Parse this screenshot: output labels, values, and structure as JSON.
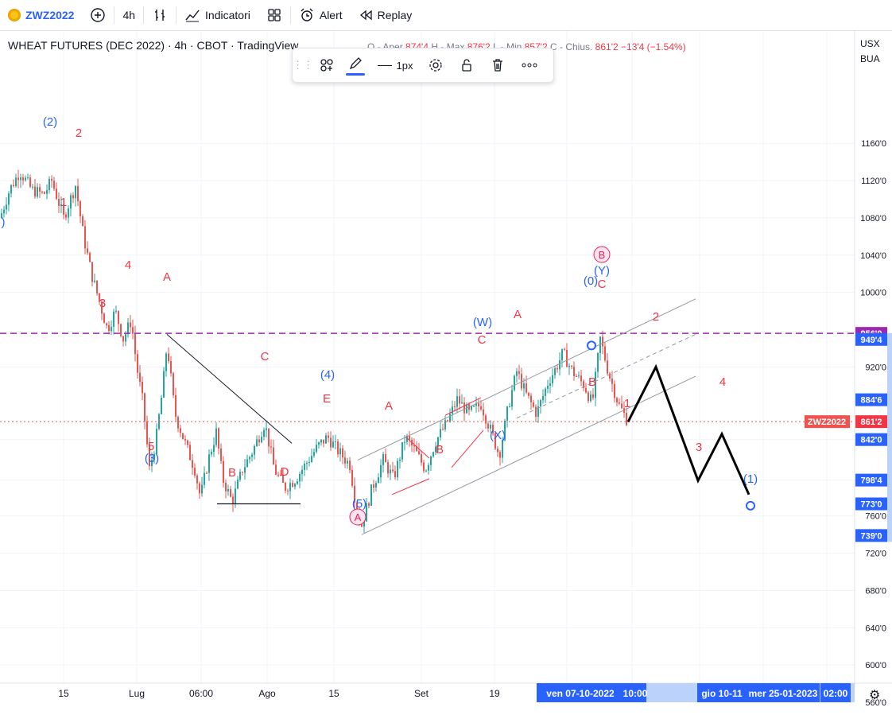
{
  "toolbar": {
    "symbol": "ZWZ2022",
    "timeframe": "4h",
    "indicators_label": "Indicatori",
    "alert_label": "Alert",
    "replay_label": "Replay"
  },
  "legend": {
    "title": "WHEAT FUTURES (DEC 2022) · 4h · CBOT · TradingView",
    "o_label": "O - Aper",
    "o_value": "874'4",
    "h_label": "H - Max",
    "h_value": "876'2",
    "l_label": "L - Min",
    "l_value": "857'2",
    "c_label": "C - Chius.",
    "c_value": "861'2",
    "change": "−13'4 (−1.54%)"
  },
  "drawing_toolbar": {
    "width_label": "1px"
  },
  "axis": {
    "currency": "USX",
    "unit": "BUA",
    "symbol_tag": "ZWZ2022"
  },
  "colors": {
    "up": "#26a69a",
    "down": "#ef5350",
    "wave_red": "#f23645",
    "wave_blue": "#2962ff",
    "resistance": "#9c27b0",
    "axis_highlight": "#2962ff",
    "projection": "#000000",
    "circled": "#e91e63"
  },
  "chart_data": {
    "type": "candlestick",
    "title": "WHEAT FUTURES (DEC 2022)",
    "y_ticks": [
      "1160'0",
      "1120'0",
      "1080'0",
      "1040'0",
      "1000'0",
      "920'0",
      "842'0",
      "798'4",
      "760'0",
      "720'0",
      "680'0",
      "640'0",
      "600'0",
      "560'0"
    ],
    "y_range": [
      540,
      1200
    ],
    "x_ticks": [
      "15",
      "Lug",
      "06:00",
      "Ago",
      "15",
      "Set",
      "19"
    ],
    "x_highlights": [
      "ven 07-10-2022",
      "10:00",
      "gio 10-11",
      "mer 25-01-2023",
      "02:00"
    ],
    "price_tags": [
      {
        "value": "956'0",
        "color": "#9c27b0"
      },
      {
        "value": "949'4",
        "color": "#2962ff"
      },
      {
        "value": "884'6",
        "color": "#2962ff"
      },
      {
        "value": "861'2",
        "color": "#f23645"
      },
      {
        "value": "842'0",
        "color": "#2962ff"
      },
      {
        "value": "798'4",
        "color": "#2962ff"
      },
      {
        "value": "773'0",
        "color": "#2962ff"
      },
      {
        "value": "739'0",
        "color": "#2962ff"
      }
    ],
    "resistance_level": 956,
    "last_price": 861.25,
    "price_path": [
      [
        0,
        1080
      ],
      [
        12,
        1110
      ],
      [
        25,
        1130
      ],
      [
        40,
        1110
      ],
      [
        55,
        1105
      ],
      [
        65,
        1120
      ],
      [
        80,
        1080
      ],
      [
        95,
        1115
      ],
      [
        105,
        1060
      ],
      [
        115,
        1020
      ],
      [
        125,
        990
      ],
      [
        135,
        960
      ],
      [
        145,
        980
      ],
      [
        155,
        950
      ],
      [
        165,
        970
      ],
      [
        172,
        920
      ],
      [
        180,
        880
      ],
      [
        188,
        810
      ],
      [
        196,
        840
      ],
      [
        205,
        900
      ],
      [
        210,
        945
      ],
      [
        220,
        870
      ],
      [
        232,
        840
      ],
      [
        245,
        810
      ],
      [
        252,
        780
      ],
      [
        262,
        820
      ],
      [
        272,
        850
      ],
      [
        280,
        800
      ],
      [
        292,
        775
      ],
      [
        305,
        810
      ],
      [
        318,
        830
      ],
      [
        333,
        860
      ],
      [
        345,
        810
      ],
      [
        358,
        790
      ],
      [
        372,
        800
      ],
      [
        388,
        820
      ],
      [
        400,
        835
      ],
      [
        412,
        845
      ],
      [
        425,
        830
      ],
      [
        440,
        815
      ],
      [
        448,
        770
      ],
      [
        455,
        750
      ],
      [
        468,
        790
      ],
      [
        482,
        820
      ],
      [
        495,
        800
      ],
      [
        510,
        845
      ],
      [
        522,
        830
      ],
      [
        535,
        810
      ],
      [
        548,
        840
      ],
      [
        562,
        860
      ],
      [
        575,
        885
      ],
      [
        590,
        870
      ],
      [
        605,
        880
      ],
      [
        618,
        850
      ],
      [
        628,
        825
      ],
      [
        640,
        880
      ],
      [
        650,
        915
      ],
      [
        662,
        890
      ],
      [
        675,
        870
      ],
      [
        690,
        905
      ],
      [
        700,
        920
      ],
      [
        708,
        935
      ],
      [
        720,
        915
      ],
      [
        735,
        900
      ],
      [
        745,
        880
      ],
      [
        755,
        950
      ],
      [
        765,
        915
      ],
      [
        778,
        880
      ],
      [
        790,
        861
      ]
    ],
    "projection": [
      [
        790,
        861
      ],
      [
        825,
        920
      ],
      [
        878,
        798
      ],
      [
        908,
        848
      ],
      [
        942,
        783
      ]
    ],
    "labels": [
      {
        "text": "(2)",
        "color": "blue"
      },
      {
        "text": "2",
        "color": "red"
      },
      {
        "text": "1",
        "color": "red"
      },
      {
        "text": ")",
        "color": "blue"
      },
      {
        "text": "4",
        "color": "red"
      },
      {
        "text": "3",
        "color": "red"
      },
      {
        "text": "A",
        "color": "red"
      },
      {
        "text": "5",
        "color": "red"
      },
      {
        "text": "(3)",
        "color": "blue"
      },
      {
        "text": "B",
        "color": "red"
      },
      {
        "text": "D",
        "color": "red"
      },
      {
        "text": "C",
        "color": "red"
      },
      {
        "text": "(4)",
        "color": "blue"
      },
      {
        "text": "E",
        "color": "red"
      },
      {
        "text": "(5)",
        "color": "blue"
      },
      {
        "text": "A",
        "color": "red"
      },
      {
        "text": "B",
        "color": "red"
      },
      {
        "text": "(W)",
        "color": "blue"
      },
      {
        "text": "C",
        "color": "red"
      },
      {
        "text": "(X)",
        "color": "blue"
      },
      {
        "text": "A",
        "color": "red"
      },
      {
        "text": "(0)",
        "color": "blue"
      },
      {
        "text": "(Y)",
        "color": "blue"
      },
      {
        "text": "C",
        "color": "red"
      },
      {
        "text": "B",
        "color": "red"
      },
      {
        "text": "1",
        "color": "red"
      },
      {
        "text": "2",
        "color": "red"
      },
      {
        "text": "3",
        "color": "red"
      },
      {
        "text": "4",
        "color": "red"
      },
      {
        "text": "(1)",
        "color": "blue"
      }
    ],
    "circled_labels": [
      "A",
      "B"
    ]
  }
}
